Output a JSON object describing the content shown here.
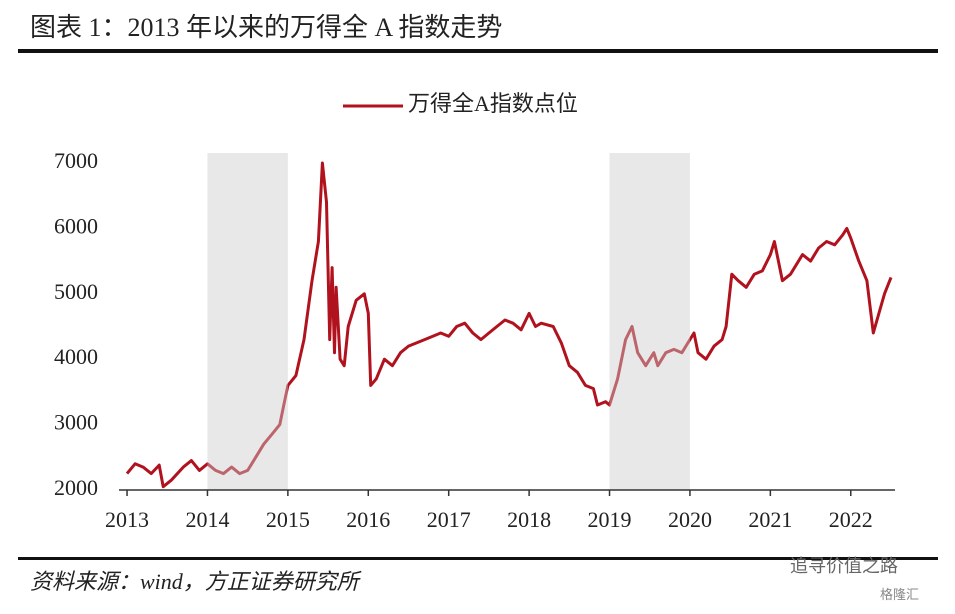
{
  "chart_data": {
    "type": "line",
    "title": "图表 1：2013 年以来的万得全 A 指数走势",
    "source": "资料来源：wind，方正证券研究所",
    "watermark": [
      "追寻价值之路",
      "格隆汇"
    ],
    "x": [
      2013.0,
      2013.1,
      2013.2,
      2013.3,
      2013.4,
      2013.45,
      2013.55,
      2013.7,
      2013.8,
      2013.9,
      2014.0,
      2014.1,
      2014.2,
      2014.3,
      2014.4,
      2014.5,
      2014.6,
      2014.7,
      2014.8,
      2014.9,
      2014.95,
      2015.0,
      2015.1,
      2015.2,
      2015.3,
      2015.38,
      2015.43,
      2015.48,
      2015.52,
      2015.55,
      2015.58,
      2015.6,
      2015.65,
      2015.7,
      2015.75,
      2015.85,
      2015.95,
      2016.0,
      2016.03,
      2016.1,
      2016.2,
      2016.3,
      2016.4,
      2016.5,
      2016.7,
      2016.9,
      2017.0,
      2017.1,
      2017.2,
      2017.3,
      2017.4,
      2017.5,
      2017.6,
      2017.7,
      2017.8,
      2017.9,
      2018.0,
      2018.08,
      2018.15,
      2018.3,
      2018.4,
      2018.5,
      2018.6,
      2018.7,
      2018.8,
      2018.85,
      2018.95,
      2019.0,
      2019.1,
      2019.2,
      2019.28,
      2019.35,
      2019.45,
      2019.55,
      2019.6,
      2019.7,
      2019.8,
      2019.9,
      2020.0,
      2020.05,
      2020.1,
      2020.2,
      2020.3,
      2020.4,
      2020.45,
      2020.52,
      2020.6,
      2020.7,
      2020.8,
      2020.9,
      2021.0,
      2021.05,
      2021.15,
      2021.25,
      2021.4,
      2021.5,
      2021.6,
      2021.7,
      2021.8,
      2021.9,
      2021.95,
      2022.0,
      2022.1,
      2022.2,
      2022.28,
      2022.35,
      2022.42,
      2022.5
    ],
    "series": [
      {
        "name": "万得全A指数点位",
        "color": "#b0121e",
        "values": [
          2250,
          2400,
          2350,
          2250,
          2380,
          2050,
          2150,
          2350,
          2450,
          2300,
          2400,
          2300,
          2250,
          2350,
          2250,
          2300,
          2500,
          2700,
          2850,
          3000,
          3300,
          3600,
          3750,
          4300,
          5200,
          5800,
          7000,
          6400,
          4300,
          5400,
          4100,
          5100,
          4000,
          3900,
          4500,
          4900,
          5000,
          4700,
          3600,
          3700,
          4000,
          3900,
          4100,
          4200,
          4300,
          4400,
          4350,
          4500,
          4550,
          4400,
          4300,
          4400,
          4500,
          4600,
          4550,
          4450,
          4700,
          4500,
          4550,
          4500,
          4250,
          3900,
          3800,
          3600,
          3550,
          3300,
          3350,
          3300,
          3700,
          4300,
          4500,
          4100,
          3900,
          4100,
          3900,
          4100,
          4150,
          4100,
          4300,
          4400,
          4100,
          4000,
          4200,
          4300,
          4500,
          5300,
          5200,
          5100,
          5300,
          5350,
          5600,
          5800,
          5200,
          5300,
          5600,
          5500,
          5700,
          5800,
          5750,
          5900,
          6000,
          5850,
          5500,
          5200,
          4400,
          4700,
          5000,
          5250
        ]
      }
    ],
    "shaded": [
      [
        2014,
        2015
      ],
      [
        2019,
        2020
      ]
    ],
    "xlim": [
      2012.9,
      2022.55
    ],
    "xticks": [
      2013,
      2014,
      2015,
      2016,
      2017,
      2018,
      2019,
      2020,
      2021,
      2022
    ],
    "ylim": [
      2000,
      7000
    ],
    "yticks": [
      2000,
      3000,
      4000,
      5000,
      6000,
      7000
    ],
    "legend": "top"
  }
}
